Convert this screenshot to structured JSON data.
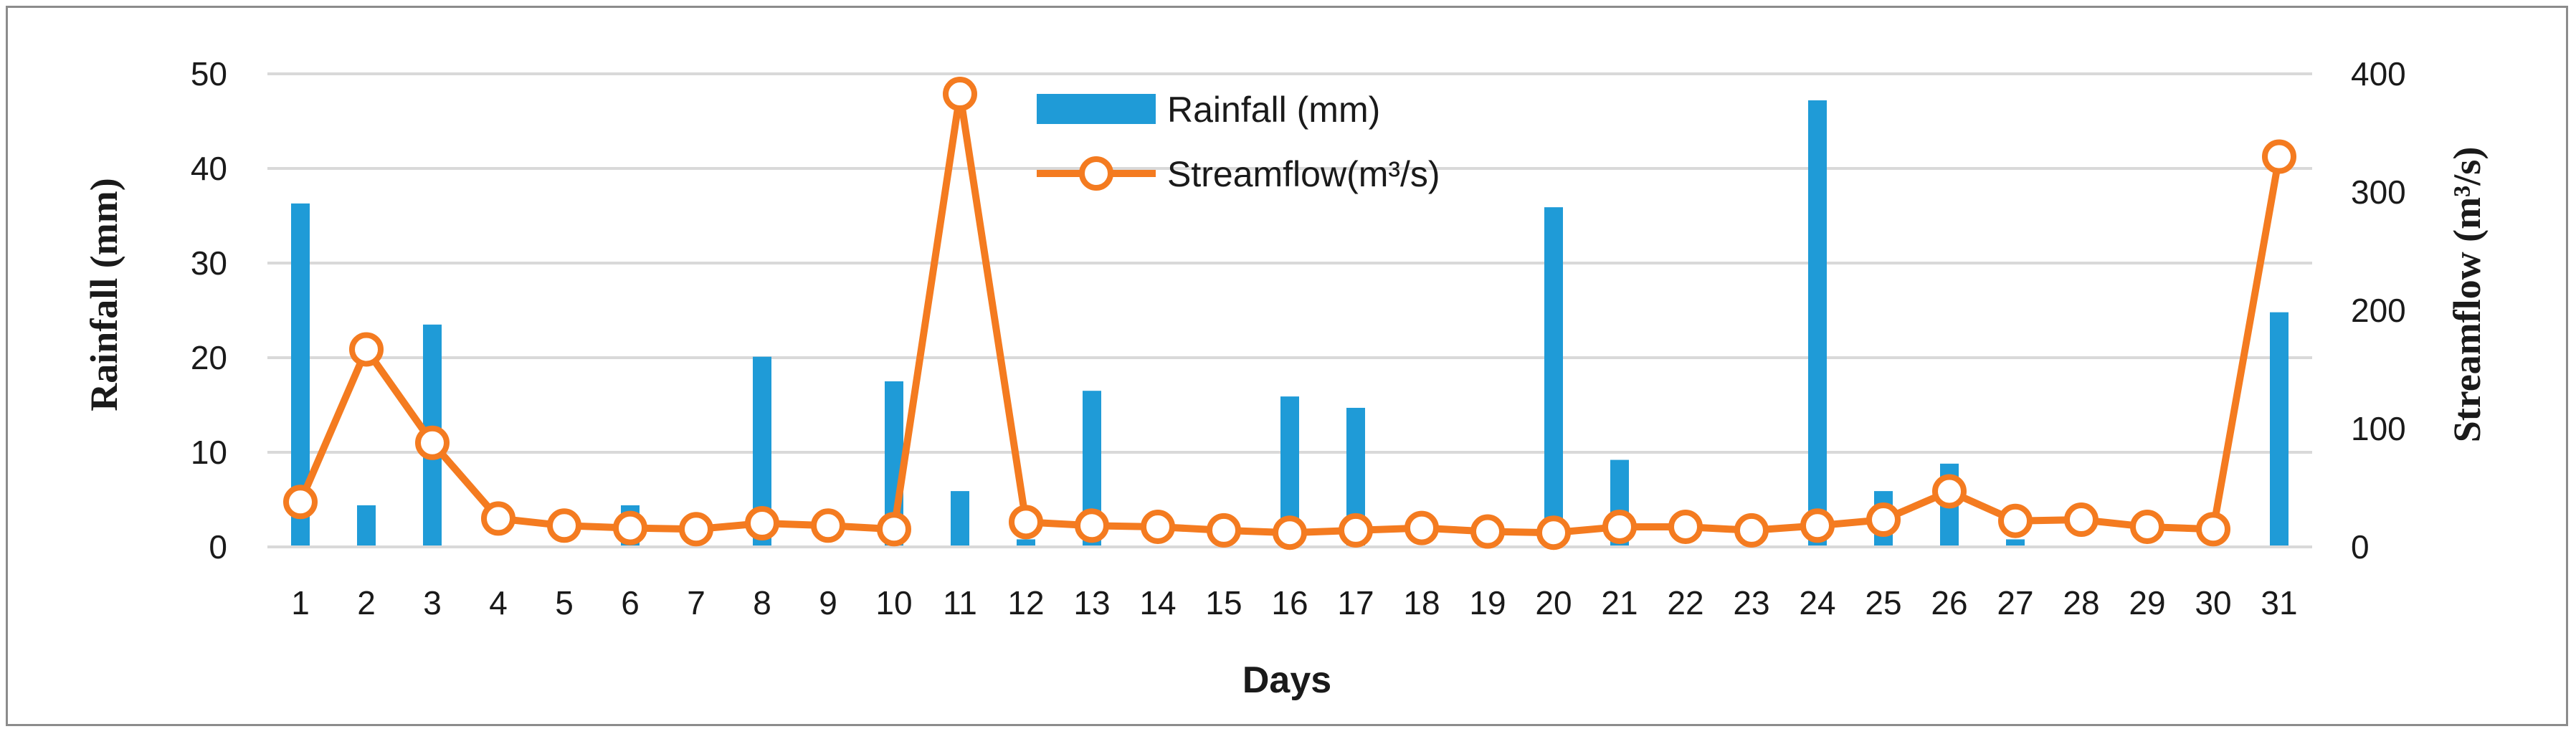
{
  "chart_data": {
    "type": "bar+line",
    "title": "",
    "xlabel": "Days",
    "ylabel_left": "Rainfall (mm)",
    "ylabel_right": "Streamflow (m³/s)",
    "categories": [
      "1",
      "2",
      "3",
      "4",
      "5",
      "6",
      "7",
      "8",
      "9",
      "10",
      "11",
      "12",
      "13",
      "14",
      "15",
      "16",
      "17",
      "18",
      "19",
      "20",
      "21",
      "22",
      "23",
      "24",
      "25",
      "26",
      "27",
      "28",
      "29",
      "30",
      "31"
    ],
    "ylim_left": [
      0,
      50
    ],
    "yticks_left": [
      "0",
      "10",
      "20",
      "30",
      "40",
      "50"
    ],
    "ylim_right": [
      0,
      400
    ],
    "yticks_right": [
      "0",
      "100",
      "200",
      "300",
      "400"
    ],
    "grid": true,
    "legend_position": "top-center",
    "series": [
      {
        "name": "Rainfall (mm)",
        "kind": "bar",
        "axis": "left",
        "color": "#1f9bd7",
        "values": [
          36.3,
          4.4,
          23.5,
          0,
          0,
          4.4,
          0,
          20.1,
          0,
          17.5,
          5.9,
          0.8,
          16.5,
          0,
          0,
          15.9,
          14.7,
          0,
          0,
          35.9,
          9.2,
          0,
          0,
          47.2,
          5.9,
          8.8,
          0.8,
          0,
          0,
          0,
          24.8
        ]
      },
      {
        "name": "Streamflow(m³/s)",
        "kind": "line",
        "axis": "right",
        "color": "#f47b20",
        "values": [
          38,
          167,
          88,
          24,
          18,
          16,
          15,
          20,
          18,
          15,
          383,
          21,
          18,
          17,
          14,
          12,
          14,
          16,
          13,
          12,
          17,
          17,
          14,
          18,
          23,
          47,
          22,
          23,
          17,
          15,
          330
        ]
      }
    ]
  }
}
